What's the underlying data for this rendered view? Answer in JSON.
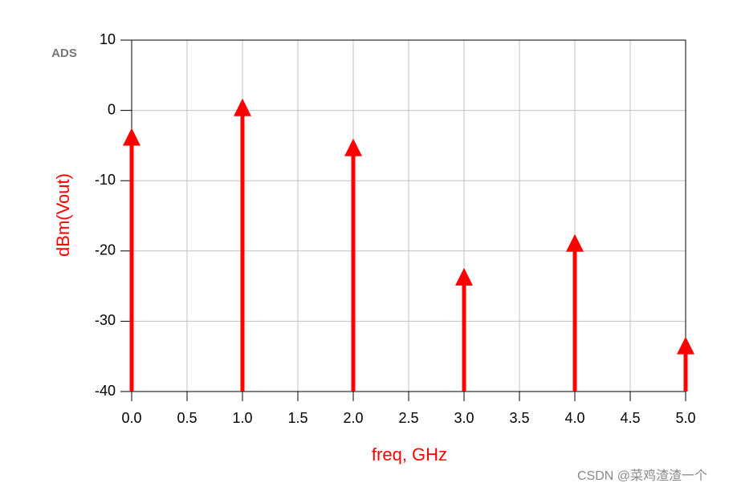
{
  "logo": "ADS",
  "watermark": "CSDN @菜鸡渣渣一个",
  "chart_data": {
    "type": "stem",
    "x_label": "freq, GHz",
    "y_label": "dBm(Vout)",
    "x": [
      0,
      1,
      2,
      3,
      4,
      5
    ],
    "series": [
      {
        "name": "dBm(Vout)",
        "color": "#ff0000",
        "values": [
          -2.5,
          1.7,
          -4.0,
          -22.4,
          -17.6,
          -32.2
        ]
      }
    ],
    "xlim": [
      0,
      5
    ],
    "ylim": [
      -40,
      10
    ],
    "xticks": [
      {
        "value": 0,
        "label": "0.0"
      },
      {
        "value": 0.5,
        "label": "0.5"
      },
      {
        "value": 1,
        "label": "1.0"
      },
      {
        "value": 1.5,
        "label": "1.5"
      },
      {
        "value": 2,
        "label": "2.0"
      },
      {
        "value": 2.5,
        "label": "2.5"
      },
      {
        "value": 3,
        "label": "3.0"
      },
      {
        "value": 3.5,
        "label": "3.5"
      },
      {
        "value": 4,
        "label": "4.0"
      },
      {
        "value": 4.5,
        "label": "4.5"
      },
      {
        "value": 5,
        "label": "5.0"
      }
    ],
    "yticks": [
      10,
      0,
      -10,
      -20,
      -30,
      -40
    ],
    "grid": true
  }
}
